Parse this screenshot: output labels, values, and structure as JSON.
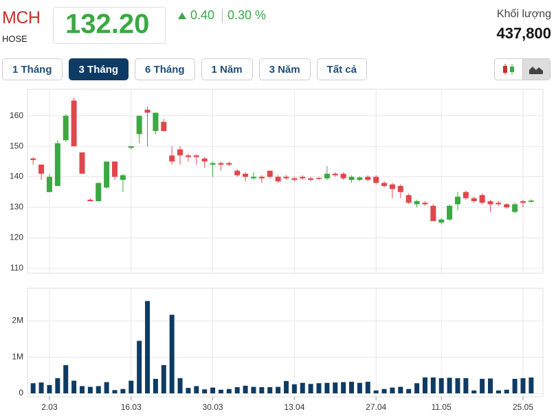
{
  "header": {
    "symbol": "MCH",
    "exchange": "HOSE",
    "price": "132.20",
    "change": "0.40",
    "change_pct": "0.30 %",
    "volume_label": "Khối lượng",
    "volume": "437,800"
  },
  "buttons": [
    "1 Tháng",
    "3 Tháng",
    "6 Tháng",
    "1 Năm",
    "3 Năm",
    "Tất cả"
  ],
  "active_button": 1,
  "chart_data": [
    {
      "type": "candlestick",
      "up_color": "#3aa843",
      "down_color": "#e0474c",
      "grid": true,
      "ylim": [
        108.4,
        168.7
      ],
      "yticks": [
        110,
        120,
        130,
        140,
        150,
        160
      ],
      "open": [
        146,
        144,
        135,
        137,
        152,
        165,
        148,
        132.5,
        132,
        136.5,
        145,
        139,
        149.5,
        154,
        162,
        155,
        158,
        147,
        149,
        147,
        147,
        146,
        144,
        144.5,
        144.5,
        142,
        141,
        139.5,
        140,
        142,
        140,
        140,
        139.5,
        140,
        139.5,
        139.6,
        139.5,
        141,
        141,
        139,
        139,
        140,
        140,
        138,
        137.5,
        137,
        134,
        131,
        131.5,
        130.5,
        125,
        126,
        131,
        135,
        133,
        134,
        132,
        131.5,
        131,
        128.5,
        132,
        131.8
      ],
      "high": [
        146.5,
        144,
        141,
        152,
        160.5,
        166,
        148,
        133,
        138,
        145,
        145,
        141,
        150,
        160,
        163,
        161,
        159,
        150,
        150,
        147.5,
        147.5,
        146.5,
        145,
        145,
        145,
        142.5,
        141.5,
        141.5,
        140.5,
        142,
        140.5,
        140.5,
        140,
        140.5,
        140,
        140,
        143.5,
        141.5,
        141.5,
        140.5,
        140.2,
        140.5,
        140.5,
        138.5,
        138,
        137.5,
        134.5,
        132.5,
        132,
        131,
        126.5,
        131,
        135,
        135.5,
        133.5,
        134.5,
        132.5,
        132,
        131.3,
        131.5,
        132.5,
        132.6
      ],
      "low": [
        144,
        139,
        135,
        137,
        151.5,
        150,
        141,
        132,
        132,
        136,
        139,
        135,
        149,
        151,
        150,
        154,
        155,
        144,
        144,
        145,
        144,
        143,
        140,
        142,
        143.5,
        140,
        138.5,
        139,
        138,
        139.5,
        138,
        139,
        138.5,
        139,
        138.5,
        139,
        139,
        140,
        139,
        138,
        138.5,
        138.5,
        137.5,
        136.5,
        133,
        133,
        131,
        130,
        130.5,
        125.5,
        124.5,
        125.5,
        129,
        132.5,
        131.5,
        131,
        128.5,
        130.5,
        129.5,
        128,
        130,
        131.5
      ],
      "close": [
        145.5,
        141,
        140,
        151,
        160,
        150,
        141,
        132,
        138,
        145,
        140,
        140.5,
        150,
        160,
        161,
        161,
        155,
        145,
        147,
        146.5,
        146.5,
        145,
        144.5,
        144,
        144,
        140.5,
        140,
        140,
        139.5,
        140,
        138.5,
        139.5,
        139,
        139.5,
        139,
        139.5,
        141,
        140.5,
        139.5,
        140,
        139.8,
        139,
        138,
        137,
        136,
        135,
        131.5,
        132,
        131,
        125.5,
        126,
        130.5,
        133.5,
        133,
        132,
        131.5,
        131,
        131,
        130,
        131,
        131.5,
        132.2
      ]
    },
    {
      "type": "bar",
      "color": "#0d3b63",
      "grid": true,
      "ylim": [
        0,
        2900000
      ],
      "yticks": [
        0,
        {
          "value": 1000000,
          "label": "1M"
        },
        {
          "value": 2000000,
          "label": "2M"
        }
      ],
      "categories": [
        null,
        null,
        "2.03",
        null,
        null,
        null,
        null,
        null,
        null,
        null,
        null,
        null,
        "16.03",
        null,
        null,
        null,
        null,
        null,
        null,
        null,
        null,
        null,
        "30.03",
        null,
        null,
        null,
        null,
        null,
        null,
        null,
        null,
        null,
        "13.04",
        null,
        null,
        null,
        null,
        null,
        null,
        null,
        null,
        null,
        "27.04",
        null,
        null,
        null,
        null,
        null,
        null,
        null,
        "11.05",
        null,
        null,
        null,
        null,
        null,
        null,
        null,
        null,
        null,
        "25.05",
        null
      ],
      "values": [
        280000,
        300000,
        230000,
        420000,
        780000,
        350000,
        200000,
        180000,
        200000,
        310000,
        90000,
        120000,
        350000,
        1450000,
        2550000,
        400000,
        780000,
        2170000,
        420000,
        150000,
        200000,
        110000,
        160000,
        100000,
        120000,
        170000,
        210000,
        180000,
        170000,
        170000,
        180000,
        340000,
        250000,
        290000,
        260000,
        280000,
        290000,
        300000,
        310000,
        320000,
        290000,
        320000,
        80000,
        120000,
        160000,
        180000,
        120000,
        280000,
        440000,
        440000,
        420000,
        430000,
        420000,
        420000,
        80000,
        400000,
        410000,
        80000,
        100000,
        400000,
        420000,
        437800
      ]
    }
  ]
}
